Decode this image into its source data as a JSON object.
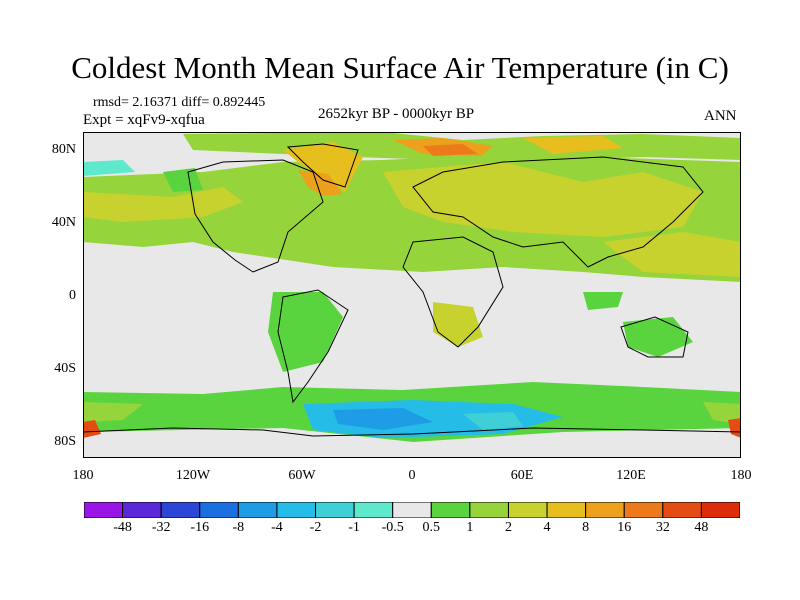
{
  "title": "Coldest Month Mean Surface Air Temperature (in C)",
  "stats": "rmsd= 2.16371 diff= 0.892445",
  "experiment": "Expt = xqFv9-xqfua",
  "period": "2652kyr BP - 0000kyr BP",
  "season": "ANN",
  "x_ticks": [
    "180",
    "120W",
    "60W",
    "0",
    "60E",
    "120E",
    "180"
  ],
  "y_ticks": [
    "80N",
    "40N",
    "0",
    "40S",
    "80S"
  ],
  "colorbar": {
    "labels": [
      "-48",
      "-32",
      "-16",
      "-8",
      "-4",
      "-2",
      "-1",
      "-0.5",
      "0.5",
      "1",
      "2",
      "4",
      "8",
      "16",
      "32",
      "48"
    ],
    "colors": [
      "#9a14e6",
      "#5a28d8",
      "#2c46d6",
      "#1c6fe0",
      "#1e9de6",
      "#26bce8",
      "#3ed0d6",
      "#5ee8cc",
      "#e8e8e8",
      "#5ad43e",
      "#96d43c",
      "#c8d22e",
      "#e6be1e",
      "#eca01c",
      "#ec7a1a",
      "#e44c14",
      "#dc2c0a"
    ]
  }
}
